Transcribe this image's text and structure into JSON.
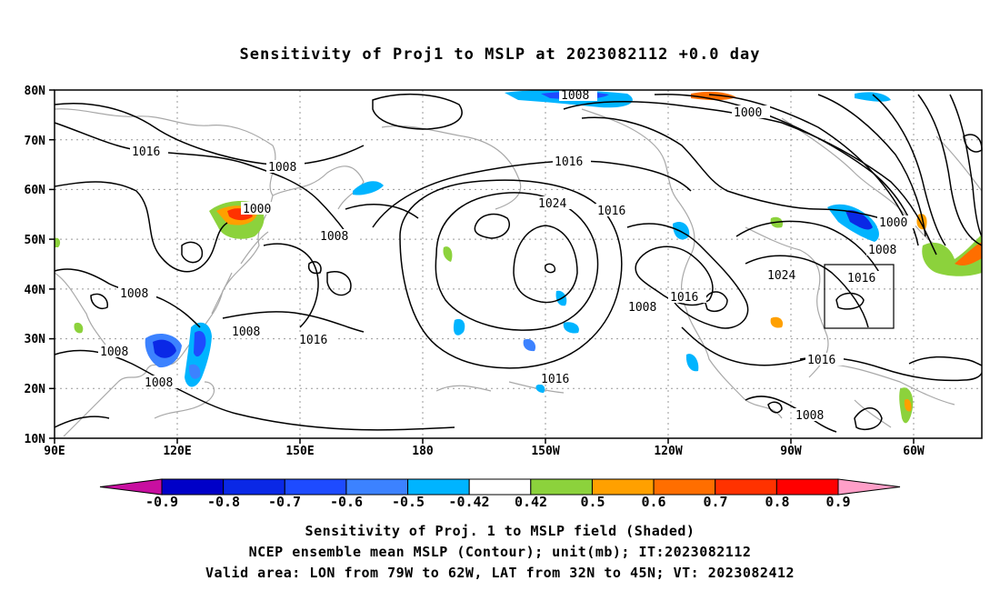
{
  "title": "Sensitivity of Proj1 to MSLP at 2023082112 +0.0 day",
  "lat_labels": [
    "80N",
    "70N",
    "60N",
    "50N",
    "40N",
    "30N",
    "20N",
    "10N"
  ],
  "lon_labels": [
    "90E",
    "120E",
    "150E",
    "180",
    "150W",
    "120W",
    "90W",
    "60W"
  ],
  "contour_labels": [
    "1016",
    "1008",
    "1000",
    "1008",
    "1008",
    "1008",
    "1008",
    "1016",
    "1008",
    "1008",
    "1024",
    "1016",
    "1016",
    "1016",
    "1016",
    "1008",
    "1008",
    "1000",
    "1008",
    "1000",
    "1024",
    "1016",
    "1016",
    "1008"
  ],
  "colorbar": {
    "labels": [
      "-0.9",
      "-0.8",
      "-0.7",
      "-0.6",
      "-0.5",
      "-0.42",
      "0.42",
      "0.5",
      "0.6",
      "0.7",
      "0.8",
      "0.9"
    ],
    "colors": [
      "#c80fa0",
      "#0000c8",
      "#0a28e6",
      "#1e4bff",
      "#3c82ff",
      "#00b4ff",
      "#ffffff",
      "#8cd23c",
      "#ffa000",
      "#ff6e00",
      "#ff3200",
      "#ff0000",
      "#ff9fc8"
    ]
  },
  "captions": [
    "Sensitivity of Proj. 1 to MSLP field (Shaded)",
    "NCEP ensemble mean MSLP (Contour); unit(mb); IT:2023082112",
    "Valid area: LON from 79W to 62W, LAT from 32N to 45N; VT: 2023082412"
  ]
}
